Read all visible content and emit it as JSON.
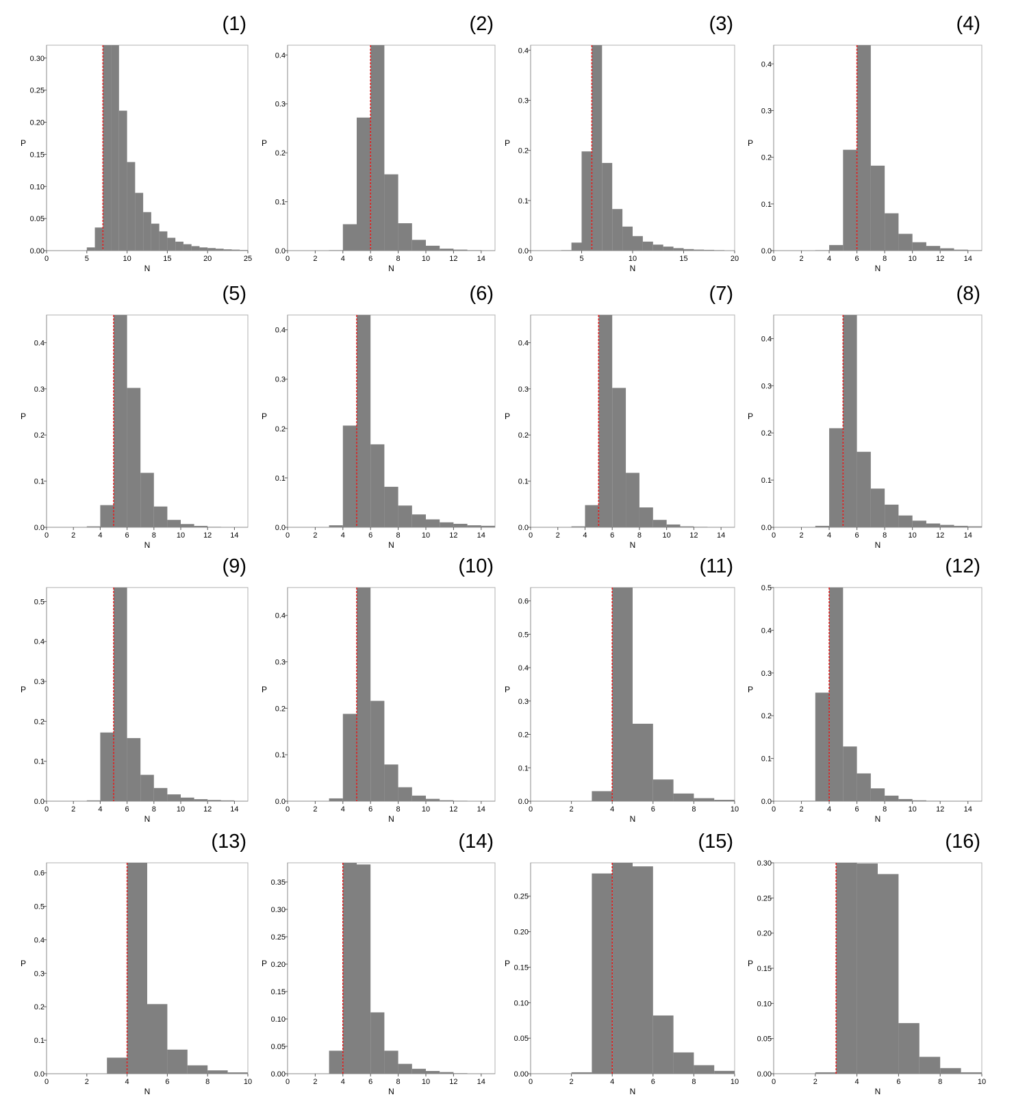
{
  "chart_data": [
    {
      "type": "bar",
      "panel_label": "(1)",
      "xlabel": "N",
      "ylabel": "P",
      "xlim": [
        0,
        25
      ],
      "ylim": [
        0,
        0.32
      ],
      "xticks": [
        "0",
        "5",
        "10",
        "15",
        "20",
        "25"
      ],
      "yticks": [
        "0.00",
        "0.05",
        "0.10",
        "0.15",
        "0.20",
        "0.25",
        "0.30"
      ],
      "threshold": 7,
      "bins": [
        5,
        6,
        7,
        8,
        9,
        10,
        11,
        12,
        13,
        14,
        15,
        16,
        17,
        18,
        19,
        20,
        21,
        22,
        23,
        24
      ],
      "values": [
        0.005,
        0.036,
        0.32,
        0.32,
        0.218,
        0.138,
        0.09,
        0.06,
        0.042,
        0.03,
        0.02,
        0.014,
        0.01,
        0.007,
        0.005,
        0.004,
        0.003,
        0.002,
        0.0015,
        0.001
      ]
    },
    {
      "type": "bar",
      "panel_label": "(2)",
      "xlabel": "N",
      "ylabel": "P",
      "xlim": [
        0,
        15
      ],
      "ylim": [
        0,
        0.42
      ],
      "xticks": [
        "0",
        "2",
        "4",
        "6",
        "8",
        "10",
        "12",
        "14"
      ],
      "yticks": [
        "0.0",
        "0.1",
        "0.2",
        "0.3",
        "0.4"
      ],
      "threshold": 6,
      "bins": [
        3,
        4,
        5,
        6,
        7,
        8,
        9,
        10,
        11,
        12,
        13,
        14
      ],
      "values": [
        0.001,
        0.054,
        0.272,
        0.42,
        0.156,
        0.056,
        0.022,
        0.01,
        0.004,
        0.002,
        0.001,
        0.0005
      ]
    },
    {
      "type": "bar",
      "panel_label": "(3)",
      "xlabel": "N",
      "ylabel": "P",
      "xlim": [
        0,
        20
      ],
      "ylim": [
        0,
        0.41
      ],
      "xticks": [
        "0",
        "5",
        "10",
        "15",
        "20"
      ],
      "yticks": [
        "0.0",
        "0.1",
        "0.2",
        "0.3",
        "0.4"
      ],
      "threshold": 6,
      "bins": [
        3,
        4,
        5,
        6,
        7,
        8,
        9,
        10,
        11,
        12,
        13,
        14,
        15,
        16,
        17,
        18,
        19
      ],
      "values": [
        0.001,
        0.016,
        0.198,
        0.41,
        0.175,
        0.083,
        0.048,
        0.029,
        0.018,
        0.012,
        0.008,
        0.005,
        0.003,
        0.002,
        0.0015,
        0.001,
        0.0005
      ]
    },
    {
      "type": "bar",
      "panel_label": "(4)",
      "xlabel": "N",
      "ylabel": "P",
      "xlim": [
        0,
        15
      ],
      "ylim": [
        0,
        0.44
      ],
      "xticks": [
        "0",
        "2",
        "4",
        "6",
        "8",
        "10",
        "12",
        "14"
      ],
      "yticks": [
        "0.0",
        "0.1",
        "0.2",
        "0.3",
        "0.4"
      ],
      "threshold": 6,
      "bins": [
        3,
        4,
        5,
        6,
        7,
        8,
        9,
        10,
        11,
        12,
        13,
        14
      ],
      "values": [
        0.001,
        0.012,
        0.216,
        0.44,
        0.182,
        0.08,
        0.036,
        0.018,
        0.01,
        0.005,
        0.002,
        0.001
      ]
    },
    {
      "type": "bar",
      "panel_label": "(5)",
      "xlabel": "N",
      "ylabel": "P",
      "xlim": [
        0,
        15
      ],
      "ylim": [
        0,
        0.46
      ],
      "xticks": [
        "0",
        "2",
        "4",
        "6",
        "8",
        "10",
        "12",
        "14"
      ],
      "yticks": [
        "0.0",
        "0.1",
        "0.2",
        "0.3",
        "0.4"
      ],
      "threshold": 5,
      "bins": [
        3,
        4,
        5,
        6,
        7,
        8,
        9,
        10,
        11,
        12,
        13
      ],
      "values": [
        0.002,
        0.048,
        0.46,
        0.302,
        0.118,
        0.045,
        0.016,
        0.007,
        0.003,
        0.001,
        0.0005
      ]
    },
    {
      "type": "bar",
      "panel_label": "(6)",
      "xlabel": "N",
      "ylabel": "P",
      "xlim": [
        0,
        15
      ],
      "ylim": [
        0,
        0.43
      ],
      "xticks": [
        "0",
        "2",
        "4",
        "6",
        "8",
        "10",
        "12",
        "14"
      ],
      "yticks": [
        "0.0",
        "0.1",
        "0.2",
        "0.3",
        "0.4"
      ],
      "threshold": 5,
      "bins": [
        3,
        4,
        5,
        6,
        7,
        8,
        9,
        10,
        11,
        12,
        13,
        14
      ],
      "values": [
        0.004,
        0.206,
        0.43,
        0.168,
        0.082,
        0.044,
        0.026,
        0.016,
        0.01,
        0.007,
        0.004,
        0.003
      ]
    },
    {
      "type": "bar",
      "panel_label": "(7)",
      "xlabel": "N",
      "ylabel": "P",
      "xlim": [
        0,
        15
      ],
      "ylim": [
        0,
        0.46
      ],
      "xticks": [
        "0",
        "2",
        "4",
        "6",
        "8",
        "10",
        "12",
        "14"
      ],
      "yticks": [
        "0.0",
        "0.1",
        "0.2",
        "0.3",
        "0.4"
      ],
      "threshold": 5,
      "bins": [
        3,
        4,
        5,
        6,
        7,
        8,
        9,
        10,
        11,
        12,
        13
      ],
      "values": [
        0.002,
        0.048,
        0.46,
        0.302,
        0.118,
        0.043,
        0.016,
        0.006,
        0.002,
        0.001,
        0.0005
      ]
    },
    {
      "type": "bar",
      "panel_label": "(8)",
      "xlabel": "N",
      "ylabel": "P",
      "xlim": [
        0,
        15
      ],
      "ylim": [
        0,
        0.45
      ],
      "xticks": [
        "0",
        "2",
        "4",
        "6",
        "8",
        "10",
        "12",
        "14"
      ],
      "yticks": [
        "0.0",
        "0.1",
        "0.2",
        "0.3",
        "0.4"
      ],
      "threshold": 5,
      "bins": [
        3,
        4,
        5,
        6,
        7,
        8,
        9,
        10,
        11,
        12,
        13,
        14
      ],
      "values": [
        0.003,
        0.21,
        0.45,
        0.16,
        0.082,
        0.048,
        0.025,
        0.014,
        0.008,
        0.005,
        0.003,
        0.002
      ]
    },
    {
      "type": "bar",
      "panel_label": "(9)",
      "xlabel": "N",
      "ylabel": "P",
      "xlim": [
        0,
        15
      ],
      "ylim": [
        0,
        0.535
      ],
      "xticks": [
        "0",
        "2",
        "4",
        "6",
        "8",
        "10",
        "12",
        "14"
      ],
      "yticks": [
        "0.0",
        "0.1",
        "0.2",
        "0.3",
        "0.4",
        "0.5"
      ],
      "threshold": 5,
      "bins": [
        3,
        4,
        5,
        6,
        7,
        8,
        9,
        10,
        11,
        12,
        13
      ],
      "values": [
        0.002,
        0.172,
        0.535,
        0.158,
        0.066,
        0.033,
        0.017,
        0.009,
        0.005,
        0.003,
        0.002
      ]
    },
    {
      "type": "bar",
      "panel_label": "(10)",
      "xlabel": "N",
      "ylabel": "P",
      "xlim": [
        0,
        15
      ],
      "ylim": [
        0,
        0.46
      ],
      "xticks": [
        "0",
        "2",
        "4",
        "6",
        "8",
        "10",
        "12",
        "14"
      ],
      "yticks": [
        "0.0",
        "0.1",
        "0.2",
        "0.3",
        "0.4"
      ],
      "threshold": 5,
      "bins": [
        3,
        4,
        5,
        6,
        7,
        8,
        9,
        10,
        11,
        12,
        13
      ],
      "values": [
        0.006,
        0.188,
        0.46,
        0.216,
        0.079,
        0.03,
        0.012,
        0.005,
        0.002,
        0.001,
        0.0005
      ]
    },
    {
      "type": "bar",
      "panel_label": "(11)",
      "xlabel": "N",
      "ylabel": "P",
      "xlim": [
        0,
        10
      ],
      "ylim": [
        0,
        0.64
      ],
      "xticks": [
        "0",
        "2",
        "4",
        "6",
        "8",
        "10"
      ],
      "yticks": [
        "0.0",
        "0.1",
        "0.2",
        "0.3",
        "0.4",
        "0.5",
        "0.6"
      ],
      "threshold": 4,
      "bins": [
        3,
        4,
        5,
        6,
        7,
        8,
        9
      ],
      "values": [
        0.03,
        0.64,
        0.232,
        0.065,
        0.023,
        0.009,
        0.004
      ]
    },
    {
      "type": "bar",
      "panel_label": "(12)",
      "xlabel": "N",
      "ylabel": "P",
      "xlim": [
        0,
        15
      ],
      "ylim": [
        0,
        0.5
      ],
      "xticks": [
        "0",
        "2",
        "4",
        "6",
        "8",
        "10",
        "12",
        "14"
      ],
      "yticks": [
        "0.0",
        "0.1",
        "0.2",
        "0.3",
        "0.4",
        "0.5"
      ],
      "threshold": 4,
      "bins": [
        2,
        3,
        4,
        5,
        6,
        7,
        8,
        9,
        10,
        11,
        12
      ],
      "values": [
        0.001,
        0.254,
        0.5,
        0.128,
        0.065,
        0.03,
        0.013,
        0.005,
        0.002,
        0.001,
        0.0005
      ]
    },
    {
      "type": "bar",
      "panel_label": "(13)",
      "xlabel": "N",
      "ylabel": "P",
      "xlim": [
        0,
        10
      ],
      "ylim": [
        0,
        0.63
      ],
      "xticks": [
        "0",
        "2",
        "4",
        "6",
        "8",
        "10"
      ],
      "yticks": [
        "0.0",
        "0.1",
        "0.2",
        "0.3",
        "0.4",
        "0.5",
        "0.6"
      ],
      "threshold": 4,
      "bins": [
        3,
        4,
        5,
        6,
        7,
        8,
        9
      ],
      "values": [
        0.048,
        0.63,
        0.208,
        0.072,
        0.025,
        0.01,
        0.004
      ]
    },
    {
      "type": "bar",
      "panel_label": "(14)",
      "xlabel": "N",
      "ylabel": "P",
      "xlim": [
        0,
        15
      ],
      "ylim": [
        0,
        0.385
      ],
      "xticks": [
        "0",
        "2",
        "4",
        "6",
        "8",
        "10",
        "12",
        "14"
      ],
      "yticks": [
        "0.00",
        "0.05",
        "0.10",
        "0.15",
        "0.20",
        "0.25",
        "0.30",
        "0.35"
      ],
      "threshold": 4,
      "bins": [
        3,
        4,
        5,
        6,
        7,
        8,
        9,
        10,
        11,
        12,
        13
      ],
      "values": [
        0.042,
        0.385,
        0.382,
        0.112,
        0.042,
        0.018,
        0.009,
        0.005,
        0.003,
        0.001,
        0.0005
      ]
    },
    {
      "type": "bar",
      "panel_label": "(15)",
      "xlabel": "N",
      "ylabel": "P",
      "xlim": [
        0,
        10
      ],
      "ylim": [
        0,
        0.297
      ],
      "xticks": [
        "0",
        "2",
        "4",
        "6",
        "8",
        "10"
      ],
      "yticks": [
        "0.00",
        "0.05",
        "0.10",
        "0.15",
        "0.20",
        "0.25"
      ],
      "threshold": 4,
      "bins": [
        2,
        3,
        4,
        5,
        6,
        7,
        8,
        9
      ],
      "values": [
        0.002,
        0.282,
        0.297,
        0.292,
        0.082,
        0.03,
        0.012,
        0.004
      ]
    },
    {
      "type": "bar",
      "panel_label": "(16)",
      "xlabel": "N",
      "ylabel": "P",
      "xlim": [
        0,
        10
      ],
      "ylim": [
        0,
        0.3
      ],
      "xticks": [
        "0",
        "2",
        "4",
        "6",
        "8",
        "10"
      ],
      "yticks": [
        "0.00",
        "0.05",
        "0.10",
        "0.15",
        "0.20",
        "0.25",
        "0.30"
      ],
      "threshold": 3,
      "bins": [
        2,
        3,
        4,
        5,
        6,
        7,
        8,
        9
      ],
      "values": [
        0.002,
        0.3,
        0.299,
        0.284,
        0.072,
        0.024,
        0.008,
        0.002
      ]
    }
  ],
  "colors": {
    "bar": "#808080",
    "threshold_line": "#e02020",
    "frame": "#b0b0b0",
    "text": "#000000"
  }
}
